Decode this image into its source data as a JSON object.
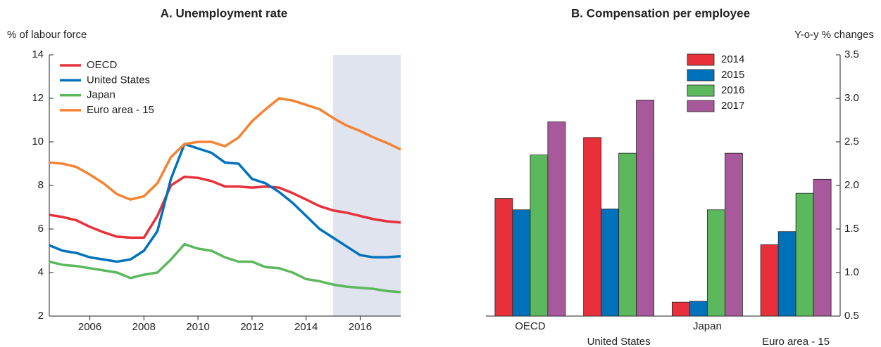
{
  "chart_data": [
    {
      "type": "line",
      "title": "A. Unemployment rate",
      "y_label": "% of labour force",
      "x": [
        2004.5,
        2005,
        2005.5,
        2006,
        2006.5,
        2007,
        2007.5,
        2008,
        2008.5,
        2009,
        2009.5,
        2010,
        2010.5,
        2011,
        2011.5,
        2012,
        2012.5,
        2013,
        2013.5,
        2014,
        2014.5,
        2015,
        2015.5,
        2016,
        2016.5,
        2017,
        2017.5
      ],
      "series": [
        {
          "name": "OECD",
          "color": "#e8303a",
          "values": [
            6.65,
            6.55,
            6.4,
            6.1,
            5.85,
            5.65,
            5.6,
            5.6,
            6.6,
            8.0,
            8.4,
            8.35,
            8.2,
            7.95,
            7.95,
            7.9,
            7.95,
            7.9,
            7.65,
            7.35,
            7.05,
            6.85,
            6.75,
            6.6,
            6.45,
            6.35,
            6.3
          ]
        },
        {
          "name": "United States",
          "color": "#0072bc",
          "values": [
            5.25,
            5.0,
            4.9,
            4.7,
            4.6,
            4.5,
            4.6,
            5.0,
            5.9,
            8.3,
            9.9,
            9.7,
            9.5,
            9.05,
            9.0,
            8.3,
            8.1,
            7.7,
            7.2,
            6.6,
            6.0,
            5.6,
            5.2,
            4.8,
            4.7,
            4.7,
            4.75
          ]
        },
        {
          "name": "Japan",
          "color": "#5cb85c",
          "values": [
            4.5,
            4.35,
            4.3,
            4.2,
            4.1,
            4.0,
            3.75,
            3.9,
            4.0,
            4.6,
            5.3,
            5.1,
            5.0,
            4.7,
            4.5,
            4.5,
            4.25,
            4.2,
            4.0,
            3.7,
            3.6,
            3.45,
            3.35,
            3.3,
            3.25,
            3.15,
            3.1
          ]
        },
        {
          "name": "Euro area - 15",
          "color": "#f58233",
          "values": [
            9.05,
            9.0,
            8.85,
            8.5,
            8.1,
            7.6,
            7.35,
            7.5,
            8.1,
            9.3,
            9.9,
            10.0,
            10.0,
            9.8,
            10.2,
            10.95,
            11.5,
            12.0,
            11.9,
            11.7,
            11.5,
            11.1,
            10.75,
            10.5,
            10.2,
            9.95,
            9.65
          ]
        }
      ],
      "xlim": [
        2004.5,
        2017.5
      ],
      "xticks": [
        2006,
        2008,
        2010,
        2012,
        2014,
        2016
      ],
      "ylim": [
        2,
        14
      ],
      "yticks": [
        2,
        4,
        6,
        8,
        10,
        12,
        14
      ],
      "shaded_x": [
        2015,
        2017.5
      ],
      "shade_color": "#dfe4ee",
      "grid": false,
      "legend": "upper left",
      "y_axis_side": "left"
    },
    {
      "type": "bar",
      "title": "B. Compensation per employee",
      "y_label": "Y-o-y % changes",
      "categories": [
        "OECD",
        "United States",
        "Japan",
        "Euro area - 15"
      ],
      "series": [
        {
          "name": "2014",
          "color": "#e8303a",
          "values": [
            1.85,
            2.55,
            0.66,
            1.32
          ]
        },
        {
          "name": "2015",
          "color": "#0072bc",
          "values": [
            1.72,
            1.73,
            0.67,
            1.47
          ]
        },
        {
          "name": "2016",
          "color": "#5cb85c",
          "values": [
            2.35,
            2.37,
            1.72,
            1.91
          ]
        },
        {
          "name": "2017",
          "color": "#a8599b",
          "values": [
            2.73,
            2.98,
            2.37,
            2.07
          ]
        }
      ],
      "ylim": [
        0.5,
        3.5
      ],
      "yticks": [
        0.5,
        {
          "value": 1.0,
          "label": "1.0"
        },
        1.5,
        {
          "value": 2.0,
          "label": "2.0"
        },
        2.5,
        {
          "value": 3.0,
          "label": "3.0"
        },
        3.5
      ],
      "grid": false,
      "legend": "upper center",
      "y_axis_side": "right"
    }
  ]
}
